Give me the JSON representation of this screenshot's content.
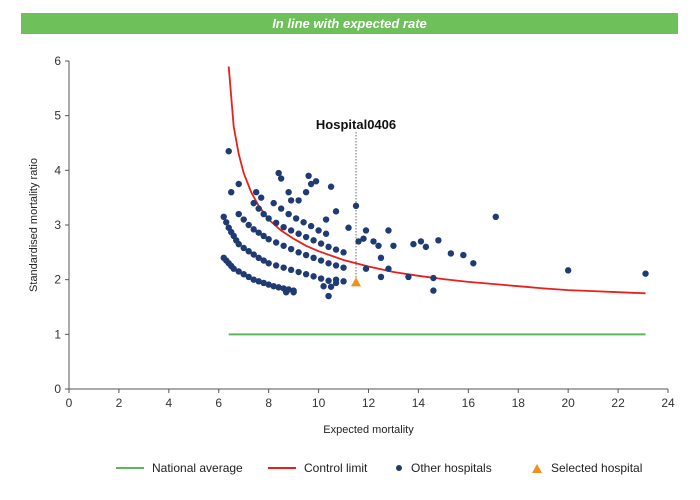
{
  "header": {
    "banner_text": "In line with expected rate"
  },
  "colors": {
    "banner": "#6ec05a",
    "national_average": "#5cb85c",
    "control_limit": "#e8201c",
    "other_hospitals": "#1f3b73",
    "selected_hospital": "#f0901e"
  },
  "legend": {
    "national_average": "National average",
    "control_limit": "Control limit",
    "other_hospitals": "Other hospitals",
    "selected_hospital": "Selected hospital"
  },
  "chart_data": {
    "type": "scatter",
    "title": "",
    "xlabel": "Expected mortality",
    "ylabel": "Standardised mortality ratio",
    "xlim": [
      0,
      24
    ],
    "ylim": [
      0,
      6
    ],
    "xticks": [
      0,
      2,
      4,
      6,
      8,
      10,
      12,
      14,
      16,
      18,
      20,
      22,
      24
    ],
    "yticks": [
      0,
      1,
      2,
      3,
      4,
      5,
      6
    ],
    "grid": false,
    "legend_position": "bottom",
    "national_average": {
      "x": [
        6.4,
        23.1
      ],
      "y": [
        1,
        1
      ]
    },
    "control_limit": {
      "x": [
        6.4,
        6.6,
        6.8,
        7.0,
        7.3,
        7.6,
        8.0,
        8.5,
        9.0,
        9.5,
        10.0,
        11.0,
        12.0,
        13.0,
        14.0,
        15.0,
        16.0,
        17.0,
        18.0,
        19.0,
        20.0,
        21.0,
        22.0,
        23.1
      ],
      "y": [
        5.9,
        4.8,
        4.3,
        3.95,
        3.6,
        3.35,
        3.1,
        2.9,
        2.75,
        2.62,
        2.52,
        2.36,
        2.24,
        2.14,
        2.07,
        2.01,
        1.96,
        1.92,
        1.88,
        1.84,
        1.81,
        1.79,
        1.77,
        1.75
      ]
    },
    "selected_hospital": {
      "name": "Hospital0406",
      "x": 11.5,
      "y": 1.95
    },
    "series": [
      {
        "name": "Other hospitals",
        "points": [
          [
            6.2,
            2.4
          ],
          [
            6.3,
            2.35
          ],
          [
            6.4,
            2.3
          ],
          [
            6.5,
            2.25
          ],
          [
            6.6,
            2.2
          ],
          [
            6.8,
            2.15
          ],
          [
            7.0,
            2.1
          ],
          [
            7.2,
            2.05
          ],
          [
            7.4,
            2.0
          ],
          [
            7.6,
            1.97
          ],
          [
            7.8,
            1.94
          ],
          [
            8.0,
            1.91
          ],
          [
            8.2,
            1.88
          ],
          [
            8.4,
            1.86
          ],
          [
            8.6,
            1.84
          ],
          [
            8.8,
            1.82
          ],
          [
            9.0,
            1.8
          ],
          [
            6.2,
            3.15
          ],
          [
            6.3,
            3.05
          ],
          [
            6.4,
            2.95
          ],
          [
            6.5,
            2.87
          ],
          [
            6.6,
            2.8
          ],
          [
            6.7,
            2.72
          ],
          [
            6.8,
            2.65
          ],
          [
            7.0,
            2.58
          ],
          [
            7.2,
            2.52
          ],
          [
            7.4,
            2.46
          ],
          [
            7.6,
            2.4
          ],
          [
            7.8,
            2.35
          ],
          [
            8.0,
            2.3
          ],
          [
            8.3,
            2.26
          ],
          [
            8.6,
            2.22
          ],
          [
            8.9,
            2.18
          ],
          [
            9.2,
            2.14
          ],
          [
            9.5,
            2.1
          ],
          [
            9.8,
            2.06
          ],
          [
            10.1,
            2.02
          ],
          [
            10.4,
            1.98
          ],
          [
            10.7,
            1.94
          ],
          [
            6.8,
            3.2
          ],
          [
            7.0,
            3.1
          ],
          [
            7.2,
            3.0
          ],
          [
            7.4,
            2.92
          ],
          [
            7.6,
            2.86
          ],
          [
            7.8,
            2.8
          ],
          [
            8.0,
            2.74
          ],
          [
            8.3,
            2.68
          ],
          [
            8.6,
            2.62
          ],
          [
            8.9,
            2.56
          ],
          [
            9.2,
            2.5
          ],
          [
            9.5,
            2.45
          ],
          [
            9.8,
            2.4
          ],
          [
            10.1,
            2.35
          ],
          [
            10.4,
            2.3
          ],
          [
            10.7,
            2.26
          ],
          [
            11.0,
            2.22
          ],
          [
            7.4,
            3.4
          ],
          [
            7.6,
            3.3
          ],
          [
            7.8,
            3.2
          ],
          [
            8.0,
            3.12
          ],
          [
            8.3,
            3.04
          ],
          [
            8.6,
            2.96
          ],
          [
            8.9,
            2.9
          ],
          [
            9.2,
            2.84
          ],
          [
            9.5,
            2.78
          ],
          [
            9.8,
            2.72
          ],
          [
            10.1,
            2.66
          ],
          [
            10.4,
            2.6
          ],
          [
            10.7,
            2.55
          ],
          [
            11.0,
            2.5
          ],
          [
            8.2,
            3.4
          ],
          [
            8.5,
            3.3
          ],
          [
            8.8,
            3.2
          ],
          [
            9.1,
            3.12
          ],
          [
            9.4,
            3.05
          ],
          [
            9.7,
            2.98
          ],
          [
            10.0,
            2.9
          ],
          [
            10.3,
            2.84
          ],
          [
            6.4,
            4.35
          ],
          [
            6.8,
            3.75
          ],
          [
            6.5,
            3.6
          ],
          [
            7.5,
            3.6
          ],
          [
            7.7,
            3.5
          ],
          [
            8.4,
            3.95
          ],
          [
            8.5,
            3.85
          ],
          [
            8.8,
            3.6
          ],
          [
            8.9,
            3.45
          ],
          [
            9.2,
            3.45
          ],
          [
            9.6,
            3.9
          ],
          [
            9.7,
            3.75
          ],
          [
            9.9,
            3.8
          ],
          [
            9.5,
            3.6
          ],
          [
            10.5,
            3.7
          ],
          [
            10.3,
            3.1
          ],
          [
            10.7,
            3.25
          ],
          [
            11.5,
            3.35
          ],
          [
            11.2,
            2.95
          ],
          [
            11.9,
            2.9
          ],
          [
            12.8,
            2.9
          ],
          [
            11.8,
            2.75
          ],
          [
            11.6,
            2.7
          ],
          [
            12.2,
            2.7
          ],
          [
            12.4,
            2.62
          ],
          [
            13.0,
            2.62
          ],
          [
            13.8,
            2.65
          ],
          [
            14.1,
            2.7
          ],
          [
            14.3,
            2.6
          ],
          [
            14.8,
            2.72
          ],
          [
            15.3,
            2.48
          ],
          [
            15.8,
            2.45
          ],
          [
            16.2,
            2.3
          ],
          [
            17.1,
            3.15
          ],
          [
            12.5,
            2.4
          ],
          [
            12.8,
            2.2
          ],
          [
            13.6,
            2.05
          ],
          [
            14.6,
            2.03
          ],
          [
            14.6,
            1.8
          ],
          [
            11.9,
            2.2
          ],
          [
            12.5,
            2.05
          ],
          [
            10.7,
            2.0
          ],
          [
            11.0,
            1.97
          ],
          [
            10.5,
            1.87
          ],
          [
            10.2,
            1.88
          ],
          [
            10.4,
            1.7
          ],
          [
            8.7,
            1.77
          ],
          [
            9.0,
            1.77
          ],
          [
            20.0,
            2.17
          ],
          [
            23.1,
            2.11
          ]
        ]
      }
    ]
  }
}
